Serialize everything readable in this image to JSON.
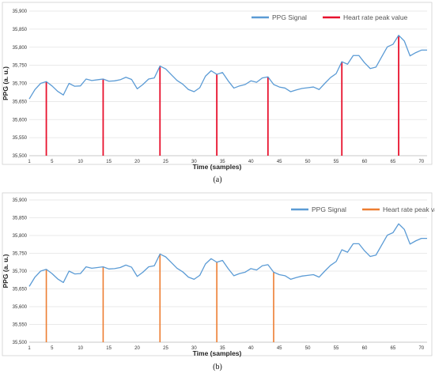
{
  "chart_data": [
    {
      "type": "line",
      "panel_label": "(a)",
      "xlabel": "Time (samples)",
      "ylabel": "PPG (a. u.)",
      "xlim": [
        1,
        71
      ],
      "ylim": [
        35500,
        35900
      ],
      "x_ticks": [
        1,
        5,
        10,
        15,
        20,
        25,
        30,
        35,
        40,
        45,
        50,
        55,
        60,
        65,
        70
      ],
      "y_ticks": [
        35500,
        35550,
        35600,
        35650,
        35700,
        35750,
        35800,
        35850,
        35900
      ],
      "y_tick_labels": [
        "35,500",
        "35,550",
        "35,600",
        "35,650",
        "35,700",
        "35,750",
        "35,800",
        "35,850",
        "35,900"
      ],
      "grid": true,
      "legend_position": "top-right",
      "x": [
        1,
        2,
        3,
        4,
        5,
        6,
        7,
        8,
        9,
        10,
        11,
        12,
        13,
        14,
        15,
        16,
        17,
        18,
        19,
        20,
        21,
        22,
        23,
        24,
        25,
        26,
        27,
        28,
        29,
        30,
        31,
        32,
        33,
        34,
        35,
        36,
        37,
        38,
        39,
        40,
        41,
        42,
        43,
        44,
        45,
        46,
        47,
        48,
        49,
        50,
        51,
        52,
        53,
        54,
        55,
        56,
        57,
        58,
        59,
        60,
        61,
        62,
        63,
        64,
        65,
        66,
        67,
        68,
        69,
        70,
        71
      ],
      "series": [
        {
          "name": "PPG Signal",
          "color": "#5b9bd5",
          "values": [
            35657,
            35683,
            35700,
            35705,
            35693,
            35678,
            35668,
            35700,
            35692,
            35693,
            35712,
            35708,
            35710,
            35712,
            35706,
            35707,
            35710,
            35717,
            35711,
            35685,
            35697,
            35712,
            35715,
            35748,
            35740,
            35724,
            35708,
            35698,
            35683,
            35677,
            35688,
            35720,
            35735,
            35725,
            35730,
            35707,
            35687,
            35693,
            35697,
            35707,
            35703,
            35715,
            35718,
            35697,
            35690,
            35687,
            35677,
            35682,
            35686,
            35688,
            35690,
            35683,
            35700,
            35716,
            35727,
            35760,
            35753,
            35777,
            35777,
            35757,
            35741,
            35745,
            35773,
            35801,
            35808,
            35833,
            35817,
            35776,
            35785,
            35792,
            35792
          ]
        },
        {
          "name": "Heart rate peak value",
          "color": "#e8112d",
          "type": "stem",
          "x": [
            4,
            14,
            24,
            34,
            43,
            56,
            66
          ],
          "values": [
            35705,
            35712,
            35748,
            35725,
            35718,
            35760,
            35833
          ]
        }
      ]
    },
    {
      "type": "line",
      "panel_label": "(b)",
      "xlabel": "Time (samples)",
      "ylabel": "PPG (a. u.)",
      "xlim": [
        1,
        71
      ],
      "ylim": [
        35500,
        35900
      ],
      "x_ticks": [
        1,
        5,
        10,
        15,
        20,
        25,
        30,
        35,
        40,
        45,
        50,
        55,
        60,
        65,
        70
      ],
      "y_ticks": [
        35500,
        35550,
        35600,
        35650,
        35700,
        35750,
        35800,
        35850,
        35900
      ],
      "y_tick_labels": [
        "35,500",
        "35,550",
        "35,600",
        "35,650",
        "35,700",
        "35,750",
        "35,800",
        "35,850",
        "35,900"
      ],
      "grid": true,
      "legend_position": "top-right",
      "x": [
        1,
        2,
        3,
        4,
        5,
        6,
        7,
        8,
        9,
        10,
        11,
        12,
        13,
        14,
        15,
        16,
        17,
        18,
        19,
        20,
        21,
        22,
        23,
        24,
        25,
        26,
        27,
        28,
        29,
        30,
        31,
        32,
        33,
        34,
        35,
        36,
        37,
        38,
        39,
        40,
        41,
        42,
        43,
        44,
        45,
        46,
        47,
        48,
        49,
        50,
        51,
        52,
        53,
        54,
        55,
        56,
        57,
        58,
        59,
        60,
        61,
        62,
        63,
        64,
        65,
        66,
        67,
        68,
        69,
        70,
        71
      ],
      "series": [
        {
          "name": "PPG Signal",
          "color": "#5b9bd5",
          "values": [
            35657,
            35683,
            35700,
            35705,
            35693,
            35678,
            35668,
            35700,
            35692,
            35693,
            35712,
            35708,
            35710,
            35712,
            35706,
            35707,
            35710,
            35717,
            35711,
            35685,
            35697,
            35712,
            35715,
            35748,
            35740,
            35724,
            35708,
            35698,
            35683,
            35677,
            35688,
            35720,
            35735,
            35725,
            35730,
            35707,
            35687,
            35693,
            35697,
            35707,
            35703,
            35715,
            35718,
            35697,
            35690,
            35687,
            35677,
            35682,
            35686,
            35688,
            35690,
            35683,
            35700,
            35716,
            35727,
            35760,
            35753,
            35777,
            35777,
            35757,
            35741,
            35745,
            35773,
            35801,
            35808,
            35833,
            35817,
            35776,
            35785,
            35792,
            35792
          ]
        },
        {
          "name": "Heart rate peak value",
          "color": "#ed7d31",
          "type": "stem",
          "x": [
            4,
            14,
            24,
            34,
            44
          ],
          "values": [
            35705,
            35712,
            35748,
            35725,
            35697
          ]
        }
      ]
    }
  ]
}
